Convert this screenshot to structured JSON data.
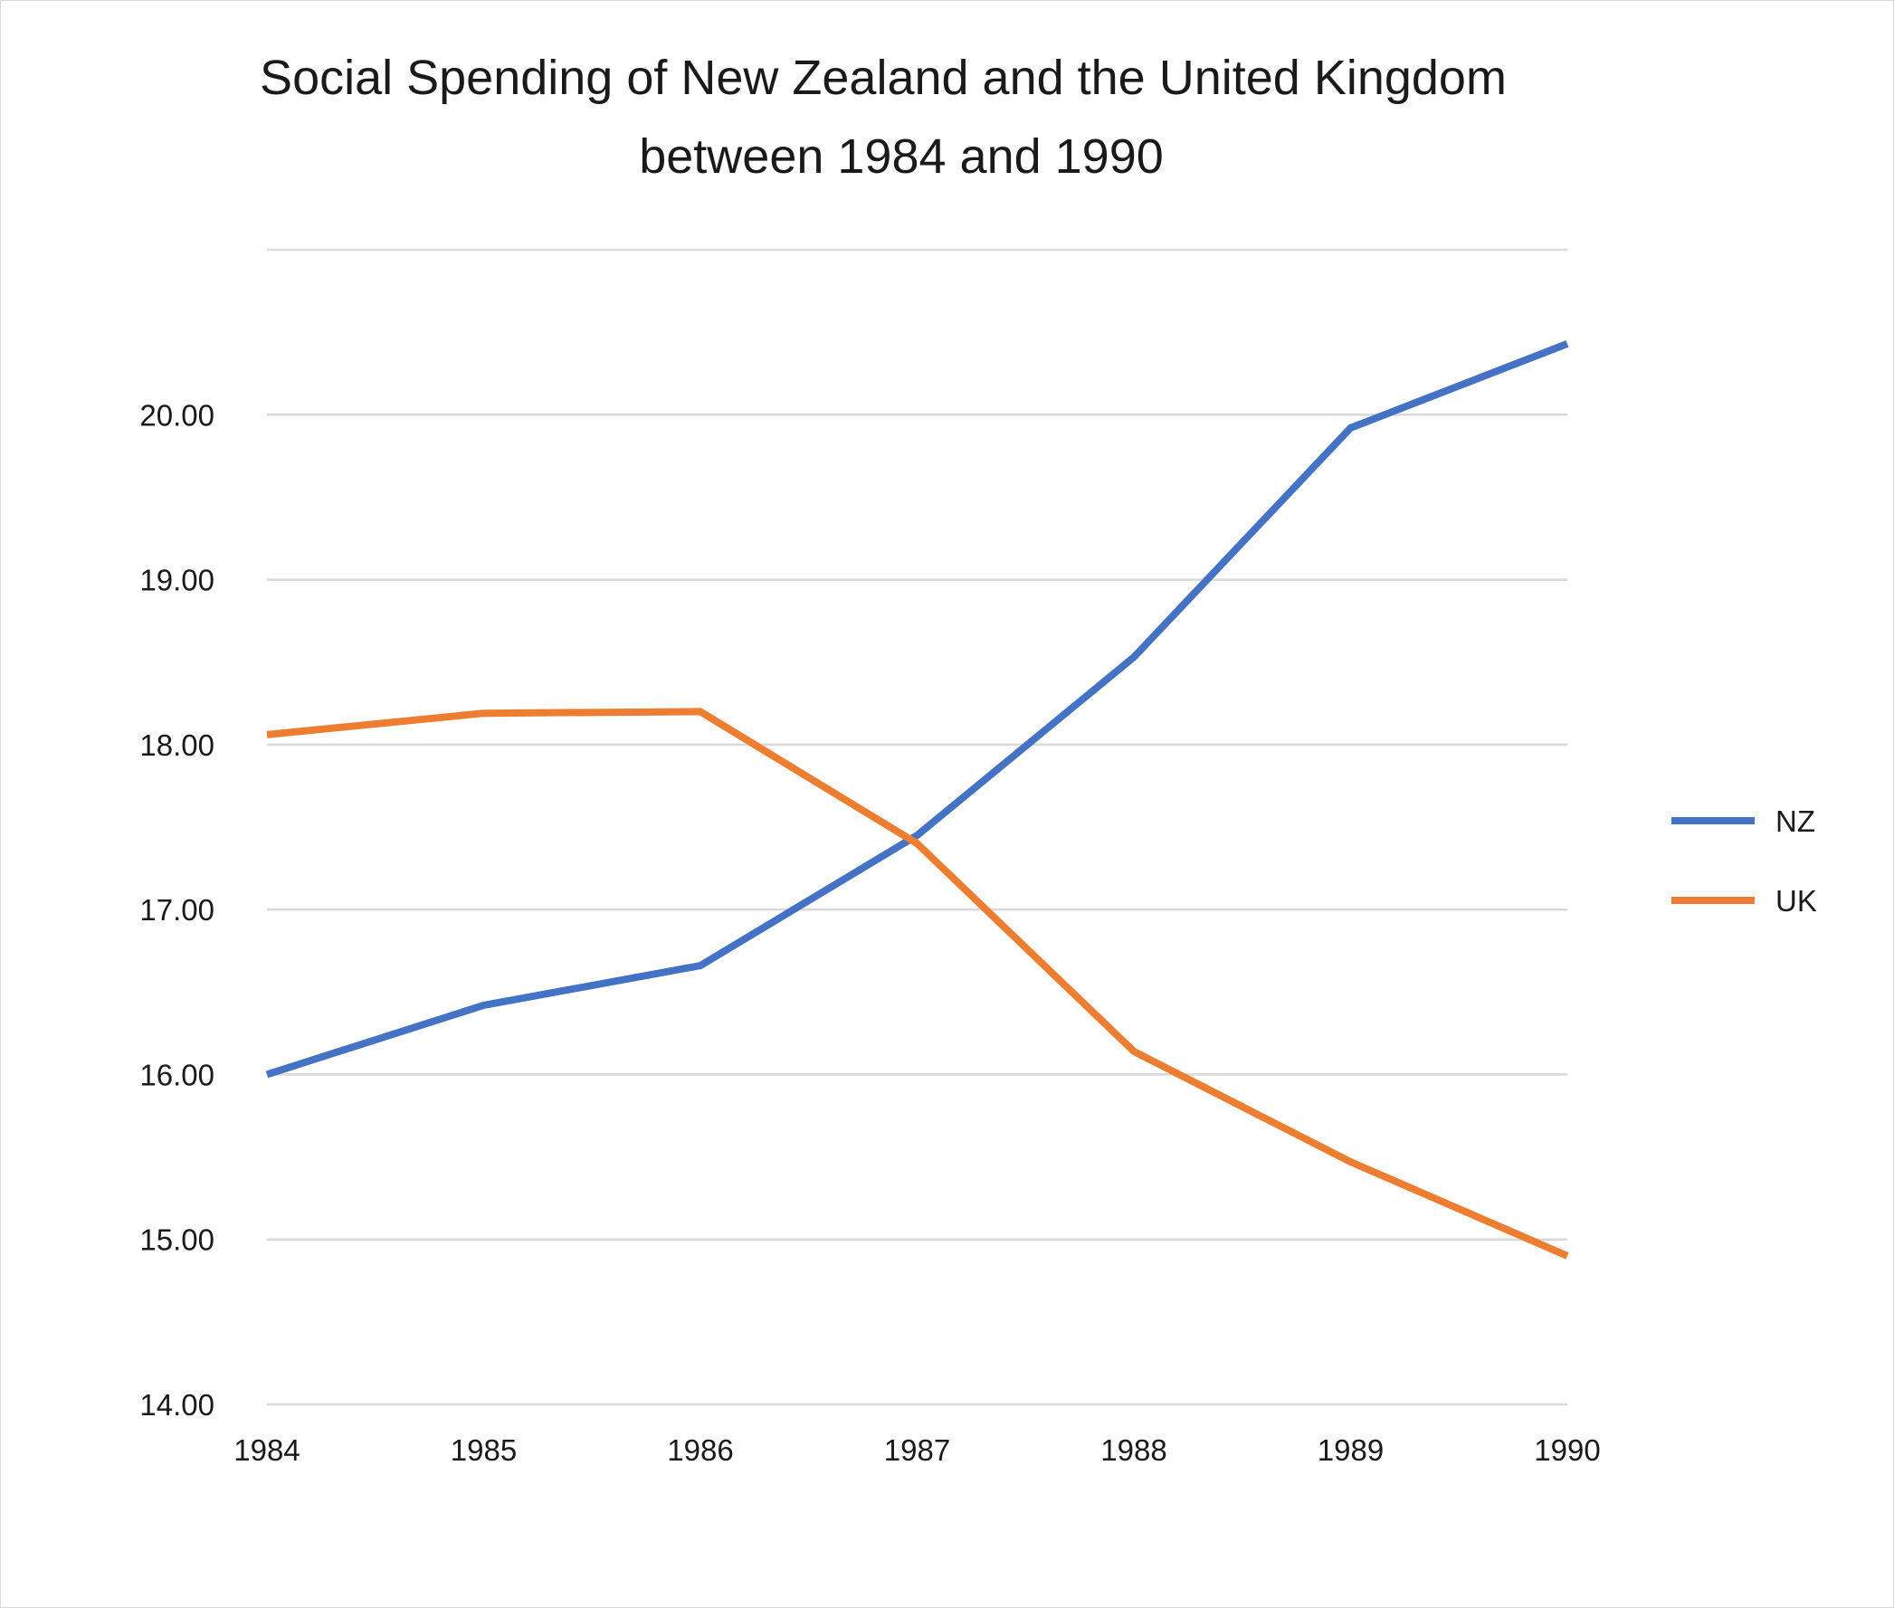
{
  "chart_data": {
    "type": "line",
    "title": [
      "Social Spending of New Zealand and the United Kingdom",
      "between 1984 and 1990"
    ],
    "xlabel": "",
    "ylabel": "",
    "x": [
      "1984",
      "1985",
      "1986",
      "1987",
      "1988",
      "1989",
      "1990"
    ],
    "ylim": [
      14,
      21
    ],
    "yticks": [
      14,
      15,
      16,
      17,
      18,
      19,
      20
    ],
    "ytick_labels": [
      "14.00",
      "15.00",
      "16.00",
      "17.00",
      "18.00",
      "19.00",
      "20.00"
    ],
    "grid": true,
    "legend_position": "right",
    "series": [
      {
        "name": "NZ",
        "color": "#4472c4",
        "values": [
          16.0,
          16.42,
          16.66,
          17.45,
          18.53,
          19.92,
          20.43
        ]
      },
      {
        "name": "UK",
        "color": "#ed7d31",
        "values": [
          18.06,
          18.19,
          18.2,
          17.4,
          16.14,
          15.47,
          14.9
        ]
      }
    ]
  }
}
